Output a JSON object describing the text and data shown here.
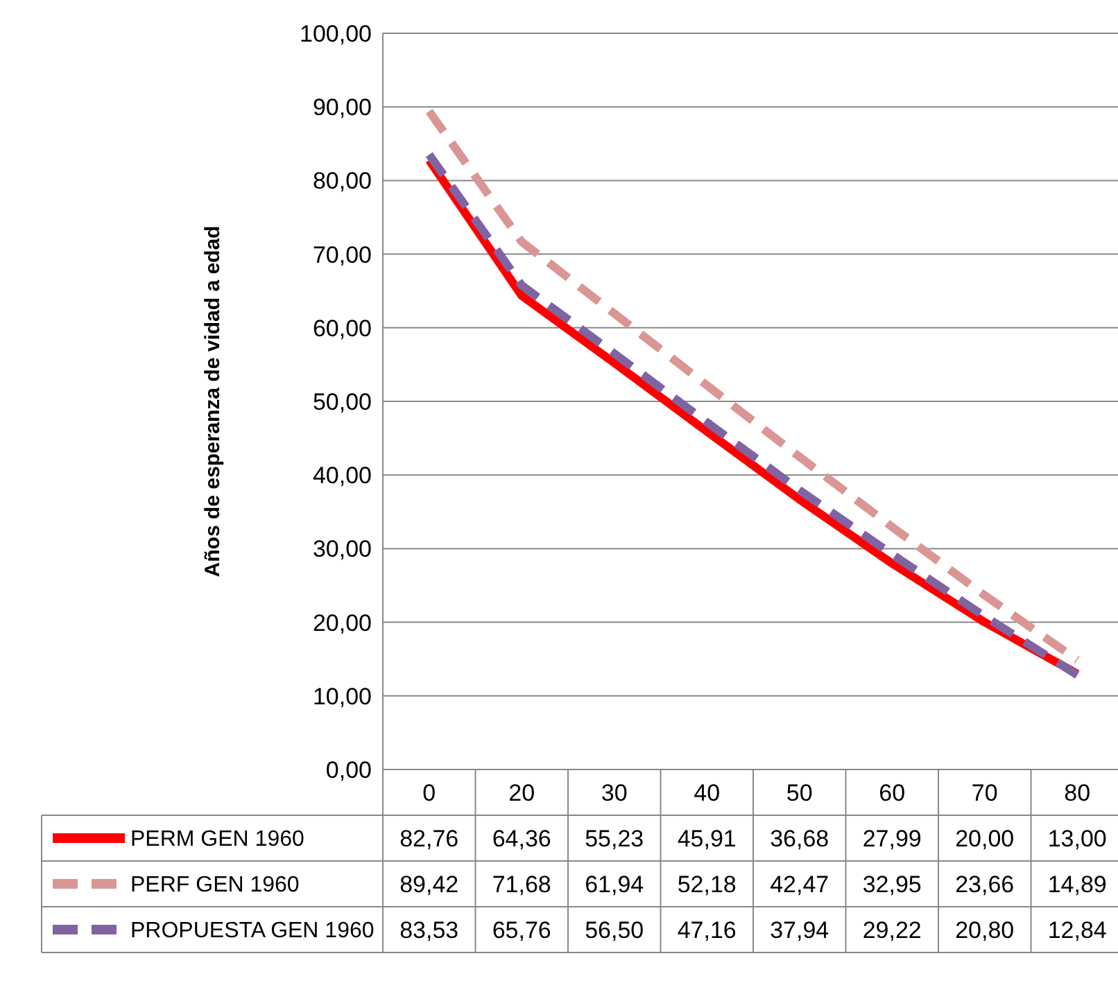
{
  "chart_data": {
    "type": "line",
    "ylabel": "Años de esperanza de vidad a edad",
    "categories": [
      "0",
      "20",
      "30",
      "40",
      "50",
      "60",
      "70",
      "80"
    ],
    "ylim": [
      0,
      100
    ],
    "yticks": [
      {
        "value": 0,
        "label": "0,00"
      },
      {
        "value": 10,
        "label": "10,00"
      },
      {
        "value": 20,
        "label": "20,00"
      },
      {
        "value": 30,
        "label": "30,00"
      },
      {
        "value": 40,
        "label": "40,00"
      },
      {
        "value": 50,
        "label": "50,00"
      },
      {
        "value": 60,
        "label": "60,00"
      },
      {
        "value": 70,
        "label": "70,00"
      },
      {
        "value": 80,
        "label": "80,00"
      },
      {
        "value": 90,
        "label": "90,00"
      },
      {
        "value": 100,
        "label": "100,00"
      }
    ],
    "grid": "y",
    "legend": "bottom",
    "series": [
      {
        "name": "PERM GEN 1960",
        "color": "#ff0000",
        "line_style": "solid",
        "values": [
          82.76,
          64.36,
          55.23,
          45.91,
          36.68,
          27.99,
          20.0,
          13.0
        ],
        "value_labels": [
          "82,76",
          "64,36",
          "55,23",
          "45,91",
          "36,68",
          "27,99",
          "20,00",
          "13,00"
        ]
      },
      {
        "name": "PERF GEN 1960",
        "color": "#d99694",
        "line_style": "dashed",
        "values": [
          89.42,
          71.68,
          61.94,
          52.18,
          42.47,
          32.95,
          23.66,
          14.89
        ],
        "value_labels": [
          "89,42",
          "71,68",
          "61,94",
          "52,18",
          "42,47",
          "32,95",
          "23,66",
          "14,89"
        ]
      },
      {
        "name": "PROPUESTA GEN 1960",
        "color": "#8064a2",
        "line_style": "dashed",
        "values": [
          83.53,
          65.76,
          56.5,
          47.16,
          37.94,
          29.22,
          20.8,
          12.84
        ],
        "value_labels": [
          "83,53",
          "65,76",
          "56,50",
          "47,16",
          "37,94",
          "29,22",
          "20,80",
          "12,84"
        ]
      }
    ]
  }
}
